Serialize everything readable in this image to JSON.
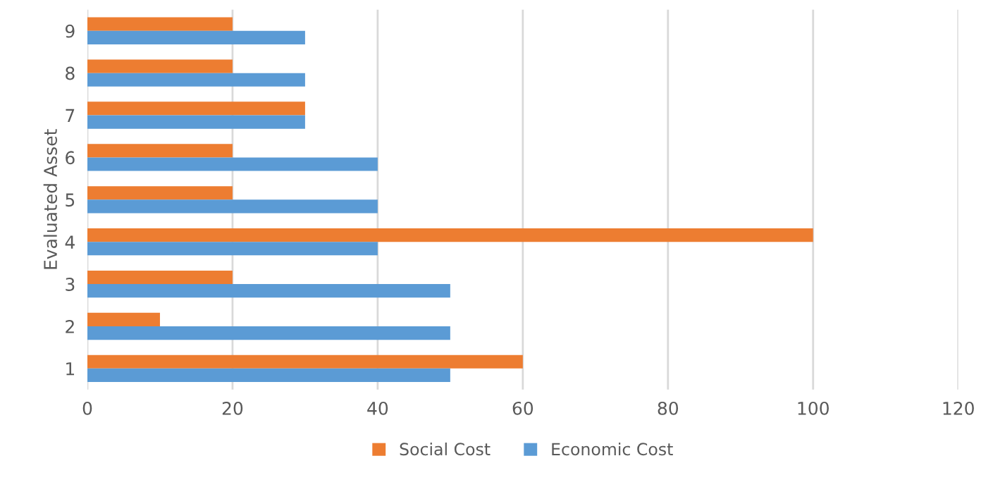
{
  "chart_data": {
    "type": "bar",
    "orientation": "horizontal",
    "ylabel": "Evaluated Asset",
    "categories": [
      "9",
      "8",
      "7",
      "6",
      "5",
      "4",
      "3",
      "2",
      "1"
    ],
    "series": [
      {
        "name": "Social Cost",
        "color": "#ed7d31",
        "values": [
          20,
          20,
          30,
          20,
          20,
          100,
          20,
          10,
          60
        ]
      },
      {
        "name": "Economic Cost",
        "color": "#5b9bd5",
        "values": [
          30,
          30,
          30,
          40,
          40,
          40,
          50,
          50,
          50
        ]
      }
    ],
    "xlim": [
      0,
      120
    ],
    "xticks": [
      0,
      20,
      40,
      60,
      80,
      100,
      120
    ],
    "grid": "x",
    "legend": "bottom"
  }
}
